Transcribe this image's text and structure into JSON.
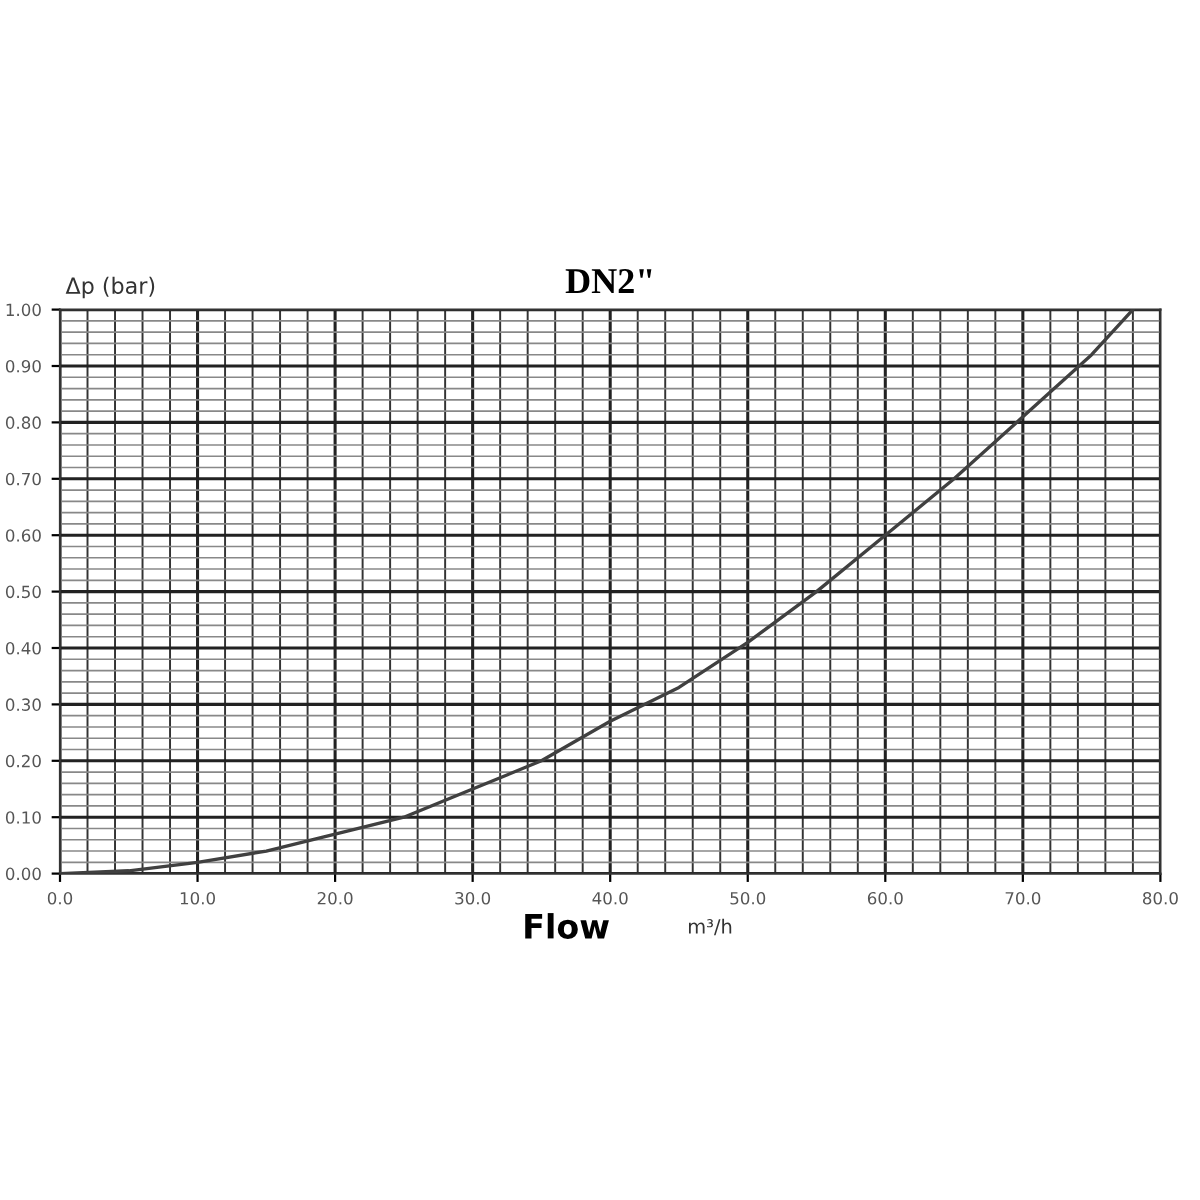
{
  "chart_data": {
    "type": "line",
    "title": "DN2\"",
    "xlabel": "Flow",
    "ylabel": "Δp (bar)",
    "annotations": [
      "m³/h"
    ],
    "x": [
      0,
      5,
      10,
      15,
      20,
      25,
      30,
      35,
      40,
      45,
      50,
      55,
      60,
      65,
      70,
      75,
      78
    ],
    "series": [
      {
        "color": "#404040",
        "values": [
          0,
          0.005,
          0.02,
          0.04,
          0.07,
          0.1,
          0.15,
          0.2,
          0.27,
          0.33,
          0.41,
          0.5,
          0.6,
          0.7,
          0.81,
          0.92,
          1.0
        ]
      }
    ],
    "xlim": [
      0,
      80
    ],
    "ylim": [
      0,
      1
    ],
    "xticks": [
      {
        "value": 0,
        "label": "0.0"
      },
      {
        "value": 10,
        "label": "10.0"
      },
      {
        "value": 20,
        "label": "20.0"
      },
      {
        "value": 30,
        "label": "30.0"
      },
      {
        "value": 40,
        "label": "40.0"
      },
      {
        "value": 50,
        "label": "50.0"
      },
      {
        "value": 60,
        "label": "60.0"
      },
      {
        "value": 70,
        "label": "70.0"
      },
      {
        "value": 80,
        "label": "80.0"
      }
    ],
    "yticks": [
      {
        "value": 0,
        "label": "0.00"
      },
      {
        "value": 0.1,
        "label": "0.10"
      },
      {
        "value": 0.2,
        "label": "0.20"
      },
      {
        "value": 0.3,
        "label": "0.30"
      },
      {
        "value": 0.4,
        "label": "0.40"
      },
      {
        "value": 0.5,
        "label": "0.50"
      },
      {
        "value": 0.6,
        "label": "0.60"
      },
      {
        "value": 0.7,
        "label": "0.70"
      },
      {
        "value": 0.8,
        "label": "0.80"
      },
      {
        "value": 0.9,
        "label": "0.90"
      },
      {
        "value": 1.0,
        "label": "1.00"
      }
    ],
    "grid": true,
    "legend": false,
    "marker": "none",
    "line_style": "solid"
  }
}
